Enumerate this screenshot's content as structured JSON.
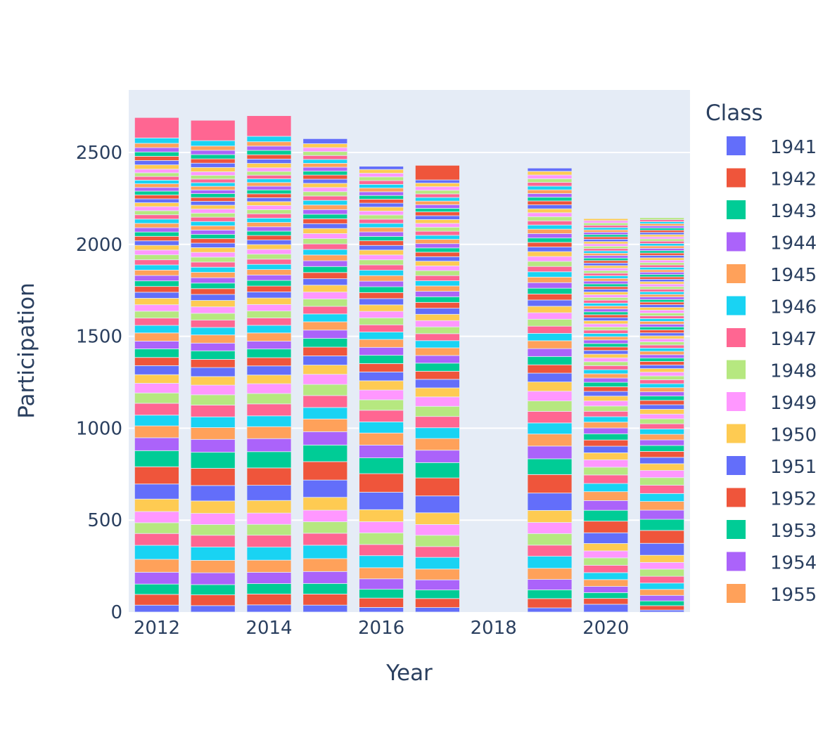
{
  "chart_data": {
    "type": "bar",
    "barmode": "stack",
    "xlabel": "Year",
    "ylabel": "Participation",
    "x_ticks": [
      "2012",
      "2014",
      "2016",
      "2018",
      "2020"
    ],
    "y_ticks": [
      "0",
      "500",
      "1000",
      "1500",
      "2000",
      "2500"
    ],
    "xlim": [
      2011.5,
      2021.5
    ],
    "ylim": [
      0,
      2840
    ],
    "grid": true,
    "legend_title": "Class",
    "legend_position": "right",
    "legend_entries": [
      "1941",
      "1942",
      "1943",
      "1944",
      "1945",
      "1946",
      "1947",
      "1948",
      "1949",
      "1950",
      "1951",
      "1952",
      "1953",
      "1954",
      "1955"
    ],
    "palette": [
      "#636efa",
      "#EF553B",
      "#00cc96",
      "#ab63fa",
      "#FFA15A",
      "#19d3f3",
      "#FF6692",
      "#B6E880",
      "#FF97FF",
      "#FECB52"
    ],
    "plot_bg": "#E5ECF6",
    "categories": [
      2012,
      2013,
      2014,
      2015,
      2016,
      2017,
      2019,
      2020,
      2021
    ],
    "totals": [
      2690,
      2675,
      2700,
      2575,
      2425,
      2430,
      2415,
      2140,
      2145
    ],
    "segments": [
      [
        32,
        50,
        48,
        55,
        60,
        65,
        55,
        50,
        52,
        58,
        70,
        80,
        75,
        60,
        55,
        50,
        55,
        48,
        45,
        40,
        42,
        38,
        40,
        36,
        38,
        35,
        34,
        32,
        30,
        30,
        28,
        27,
        26,
        25,
        25,
        24,
        24,
        23,
        22,
        22,
        21,
        21,
        20,
        20,
        20,
        20,
        20,
        19,
        19,
        18,
        18,
        18,
        18,
        17,
        17,
        17,
        17,
        17,
        17,
        20,
        20,
        20,
        20,
        20,
        20,
        25,
        95
      ],
      [
        30,
        50,
        48,
        55,
        58,
        62,
        55,
        50,
        52,
        58,
        72,
        80,
        75,
        60,
        55,
        50,
        55,
        48,
        45,
        40,
        42,
        38,
        40,
        36,
        38,
        35,
        34,
        32,
        30,
        30,
        28,
        27,
        26,
        25,
        25,
        24,
        24,
        23,
        22,
        22,
        21,
        21,
        20,
        20,
        20,
        20,
        20,
        19,
        19,
        18,
        18,
        18,
        18,
        17,
        17,
        17,
        17,
        17,
        17,
        20,
        20,
        20,
        20,
        20,
        20,
        25,
        95
      ],
      [
        33,
        50,
        48,
        52,
        56,
        60,
        55,
        50,
        52,
        58,
        70,
        80,
        75,
        60,
        55,
        50,
        55,
        48,
        45,
        40,
        42,
        38,
        40,
        36,
        38,
        35,
        34,
        32,
        30,
        30,
        28,
        27,
        26,
        25,
        25,
        24,
        24,
        23,
        22,
        22,
        21,
        21,
        20,
        20,
        20,
        20,
        20,
        19,
        19,
        18,
        18,
        18,
        18,
        17,
        17,
        17,
        17,
        17,
        17,
        20,
        20,
        20,
        20,
        20,
        20,
        25,
        95
      ],
      [
        30,
        48,
        46,
        52,
        56,
        58,
        52,
        50,
        50,
        56,
        75,
        80,
        72,
        58,
        55,
        50,
        52,
        48,
        44,
        40,
        40,
        38,
        38,
        36,
        36,
        34,
        33,
        32,
        30,
        30,
        28,
        27,
        26,
        25,
        25,
        24,
        24,
        23,
        22,
        22,
        21,
        21,
        20,
        20,
        20,
        20,
        19,
        19,
        18,
        18,
        18,
        18,
        17,
        17,
        17,
        17,
        17,
        17,
        17,
        17,
        22
      ],
      [
        20,
        40,
        38,
        45,
        48,
        52,
        48,
        50,
        48,
        52,
        75,
        80,
        68,
        55,
        52,
        48,
        50,
        45,
        42,
        40,
        38,
        36,
        36,
        34,
        34,
        32,
        31,
        30,
        28,
        28,
        27,
        26,
        25,
        24,
        24,
        23,
        23,
        22,
        21,
        21,
        20,
        20,
        19,
        19,
        19,
        18,
        18,
        18,
        17,
        17,
        17,
        17,
        16,
        16,
        16,
        16,
        16,
        16,
        16,
        16,
        14
      ],
      [
        20,
        40,
        38,
        45,
        48,
        52,
        48,
        50,
        48,
        52,
        75,
        80,
        68,
        55,
        52,
        48,
        50,
        45,
        42,
        40,
        38,
        36,
        36,
        34,
        34,
        32,
        31,
        30,
        28,
        28,
        27,
        26,
        25,
        24,
        24,
        23,
        23,
        22,
        21,
        21,
        20,
        20,
        19,
        19,
        19,
        18,
        18,
        18,
        17,
        17,
        17,
        17,
        16,
        16,
        16,
        16,
        16,
        16,
        16,
        16,
        14,
        65
      ],
      [
        18,
        40,
        38,
        45,
        48,
        52,
        48,
        50,
        48,
        52,
        75,
        80,
        68,
        55,
        52,
        48,
        50,
        45,
        42,
        40,
        38,
        36,
        36,
        34,
        34,
        32,
        31,
        30,
        28,
        28,
        27,
        26,
        25,
        24,
        24,
        23,
        23,
        22,
        21,
        21,
        20,
        20,
        19,
        19,
        19,
        18,
        18,
        18,
        17,
        17,
        17,
        17,
        16,
        16,
        16,
        16,
        16,
        16,
        16,
        16,
        14
      ],
      [
        40,
        30,
        30,
        32,
        35,
        36,
        38,
        38,
        36,
        38,
        55,
        60,
        56,
        50,
        46,
        42,
        44,
        40,
        38,
        36,
        34,
        32,
        32,
        30,
        30,
        28,
        28,
        27,
        26,
        25,
        24,
        24,
        23,
        22,
        22,
        21,
        21,
        20,
        20,
        19,
        19,
        18,
        18,
        18,
        17,
        17,
        17,
        16,
        16,
        16,
        16,
        15,
        15,
        15,
        15,
        15,
        15,
        14,
        14,
        14,
        14,
        14,
        14,
        14,
        14,
        14,
        13,
        13,
        13,
        13,
        13,
        13,
        13,
        13,
        12,
        12,
        12,
        12,
        12,
        12,
        12,
        12,
        12,
        12,
        12,
        12,
        12,
        12,
        12,
        10
      ],
      [
        10,
        22,
        24,
        28,
        30,
        32,
        34,
        36,
        34,
        36,
        60,
        65,
        56,
        46,
        44,
        40,
        42,
        38,
        36,
        34,
        32,
        30,
        30,
        28,
        28,
        27,
        26,
        25,
        24,
        24,
        23,
        22,
        22,
        21,
        21,
        20,
        20,
        19,
        19,
        18,
        18,
        18,
        17,
        17,
        17,
        16,
        16,
        16,
        15,
        15,
        15,
        15,
        15,
        14,
        14,
        14,
        14,
        14,
        14,
        14,
        14,
        13,
        13,
        13,
        13,
        13,
        13,
        13,
        13,
        12,
        12,
        12,
        12,
        12,
        12,
        12,
        12,
        12,
        12,
        12,
        12,
        12,
        12,
        12,
        12,
        12,
        12,
        11,
        11,
        11,
        11,
        11,
        11,
        11,
        11,
        10,
        10,
        10
      ]
    ]
  }
}
